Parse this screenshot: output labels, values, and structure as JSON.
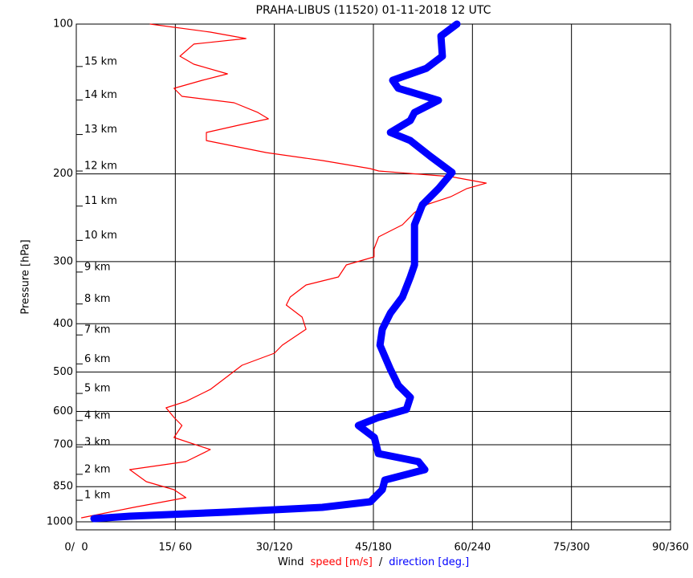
{
  "chart_data": {
    "type": "line",
    "title": "PRAHA-LIBUS (11520)    01-11-2018  12  UTC",
    "ylabel": "Pressure [hPa]",
    "xlabel": [
      {
        "text": "Wind",
        "color": "#000000"
      },
      {
        "text": "speed [m/s]",
        "color": "#ff0000"
      },
      {
        "text": "/",
        "color": "#000000"
      },
      {
        "text": "direction [deg.]",
        "color": "#0000ff"
      }
    ],
    "xlim": [
      0,
      90
    ],
    "x2lim": [
      0,
      360
    ],
    "xticks": [
      {
        "value": 0,
        "label": "0/  0"
      },
      {
        "value": 15,
        "label": "15/ 60"
      },
      {
        "value": 30,
        "label": "30/120"
      },
      {
        "value": 45,
        "label": "45/180"
      },
      {
        "value": 60,
        "label": "60/240"
      },
      {
        "value": 75,
        "label": "75/300"
      },
      {
        "value": 90,
        "label": "90/360"
      }
    ],
    "ylim": [
      1000,
      100
    ],
    "ylog": true,
    "grid": true,
    "yticks": [
      100,
      200,
      300,
      400,
      500,
      600,
      700,
      850,
      1000
    ],
    "height_ticks": [
      {
        "value": 119,
        "label": "15 km"
      },
      {
        "value": 139,
        "label": "14 km"
      },
      {
        "value": 163,
        "label": "13 km"
      },
      {
        "value": 193,
        "label": "12 km"
      },
      {
        "value": 227,
        "label": "11 km"
      },
      {
        "value": 266,
        "label": "10 km"
      },
      {
        "value": 308,
        "label": "9 km"
      },
      {
        "value": 357,
        "label": "8 km"
      },
      {
        "value": 412,
        "label": "7 km"
      },
      {
        "value": 471,
        "label": "6 km"
      },
      {
        "value": 540,
        "label": "5 km"
      },
      {
        "value": 612,
        "label": "4 km"
      },
      {
        "value": 692,
        "label": "3 km"
      },
      {
        "value": 785,
        "label": "2 km"
      },
      {
        "value": 885,
        "label": "1 km"
      }
    ],
    "series": [
      {
        "name": "speed",
        "color": "#ff0000",
        "width": 1.2,
        "pressure": [
          100,
          103.8,
          106.9,
          109.7,
          116,
          120.4,
          125.9,
          129.7,
          134.6,
          139.7,
          143.9,
          150.5,
          155,
          159.1,
          165.1,
          171.4,
          181.2,
          188,
          195.1,
          197.3,
          202.5,
          208.7,
          214.2,
          222.3,
          230.7,
          239.3,
          253.1,
          267.6,
          282.9,
          293.6,
          304.7,
          322.2,
          334.4,
          353.5,
          366.9,
          387.9,
          410.2,
          441.8,
          458.5,
          484.8,
          512.6,
          542,
          573.1,
          590.2,
          617.1,
          640.5,
          677,
          715.8,
          756.8,
          785.5,
          830.5,
          861.9,
          894.4,
          935.4,
          981.5
        ],
        "values": [
          11.2,
          20.3,
          25.7,
          17.8,
          15.7,
          17.8,
          22.9,
          19.1,
          14.8,
          16.0,
          23.9,
          27.5,
          29.1,
          25.1,
          19.7,
          19.7,
          28.8,
          37.3,
          44.5,
          45.8,
          56.7,
          62.1,
          59.1,
          56.7,
          53.0,
          51.2,
          49.4,
          45.8,
          45.1,
          45.1,
          40.9,
          39.7,
          34.8,
          32.4,
          31.8,
          34.2,
          34.8,
          31.2,
          30.0,
          25.1,
          22.7,
          20.3,
          16.6,
          13.6,
          14.8,
          16.0,
          14.8,
          20.3,
          16.6,
          8.1,
          10.6,
          14.8,
          16.6,
          8.7,
          0.8
        ]
      },
      {
        "name": "direction",
        "color": "#0000ff",
        "width": 9,
        "axis": "x2",
        "pressure": [
          100,
          105.7,
          116,
          122.7,
          129.7,
          134.6,
          142.3,
          150.5,
          156.2,
          165.1,
          171.4,
          184.5,
          198.7,
          214.2,
          230.7,
          253.1,
          272.5,
          304.7,
          322.2,
          353.5,
          380.7,
          410.2,
          441.8,
          494,
          531.8,
          562.3,
          594.6,
          617.1,
          640.5,
          677,
          729.3,
          756.8,
          785.5,
          824.3,
          861.9,
          911.2,
          935.4,
          956.4,
          974.3,
          985.2
        ],
        "values": [
          230.6,
          220.9,
          221.8,
          212.1,
          191.7,
          195.1,
          219.4,
          204.9,
          202.4,
          190.3,
          202.4,
          214.6,
          227.7,
          219.4,
          209.7,
          204.9,
          204.9,
          204.9,
          202.4,
          197.6,
          190.3,
          185.4,
          184,
          190.3,
          195.1,
          202.4,
          200,
          183,
          170.9,
          180.6,
          183,
          207.3,
          211.2,
          186.9,
          185.4,
          178.2,
          149,
          90.8,
          32.5,
          10.7
        ]
      }
    ]
  }
}
